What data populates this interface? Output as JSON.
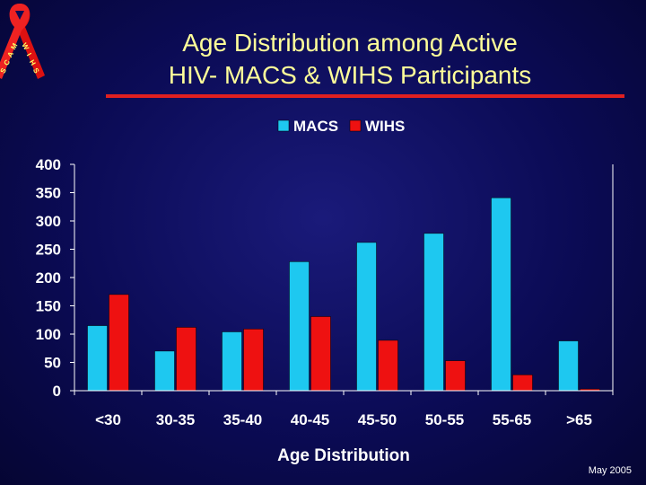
{
  "logo": {
    "icon": "aids-ribbon-icon",
    "letters": [
      "M",
      "A",
      "C",
      "S",
      "W",
      "I",
      "H",
      "S"
    ]
  },
  "header": {
    "title_line1": "Age Distribution among Active",
    "title_line2": "HIV- MACS & WIHS Participants"
  },
  "footer": {
    "date": "May 2005"
  },
  "colors": {
    "macs": "#1ec8f0",
    "wihs": "#ee1111",
    "title": "#ffff99",
    "rule": "#e02020",
    "background": "#0b0b55"
  },
  "chart_data": {
    "type": "bar",
    "title": "",
    "xlabel": "Age Distribution",
    "ylabel": "",
    "categories": [
      "<30",
      "30-35",
      "35-40",
      "40-45",
      "45-50",
      "50-55",
      "55-65",
      ">65"
    ],
    "series": [
      {
        "name": "MACS",
        "values": [
          115,
          70,
          104,
          228,
          262,
          278,
          341,
          88
        ]
      },
      {
        "name": "WIHS",
        "values": [
          170,
          112,
          109,
          131,
          89,
          53,
          28,
          3
        ]
      }
    ],
    "ylim": [
      0,
      400
    ],
    "yticks": [
      0,
      50,
      100,
      150,
      200,
      250,
      300,
      350,
      400
    ],
    "legend_position": "top-center",
    "grid": false
  }
}
